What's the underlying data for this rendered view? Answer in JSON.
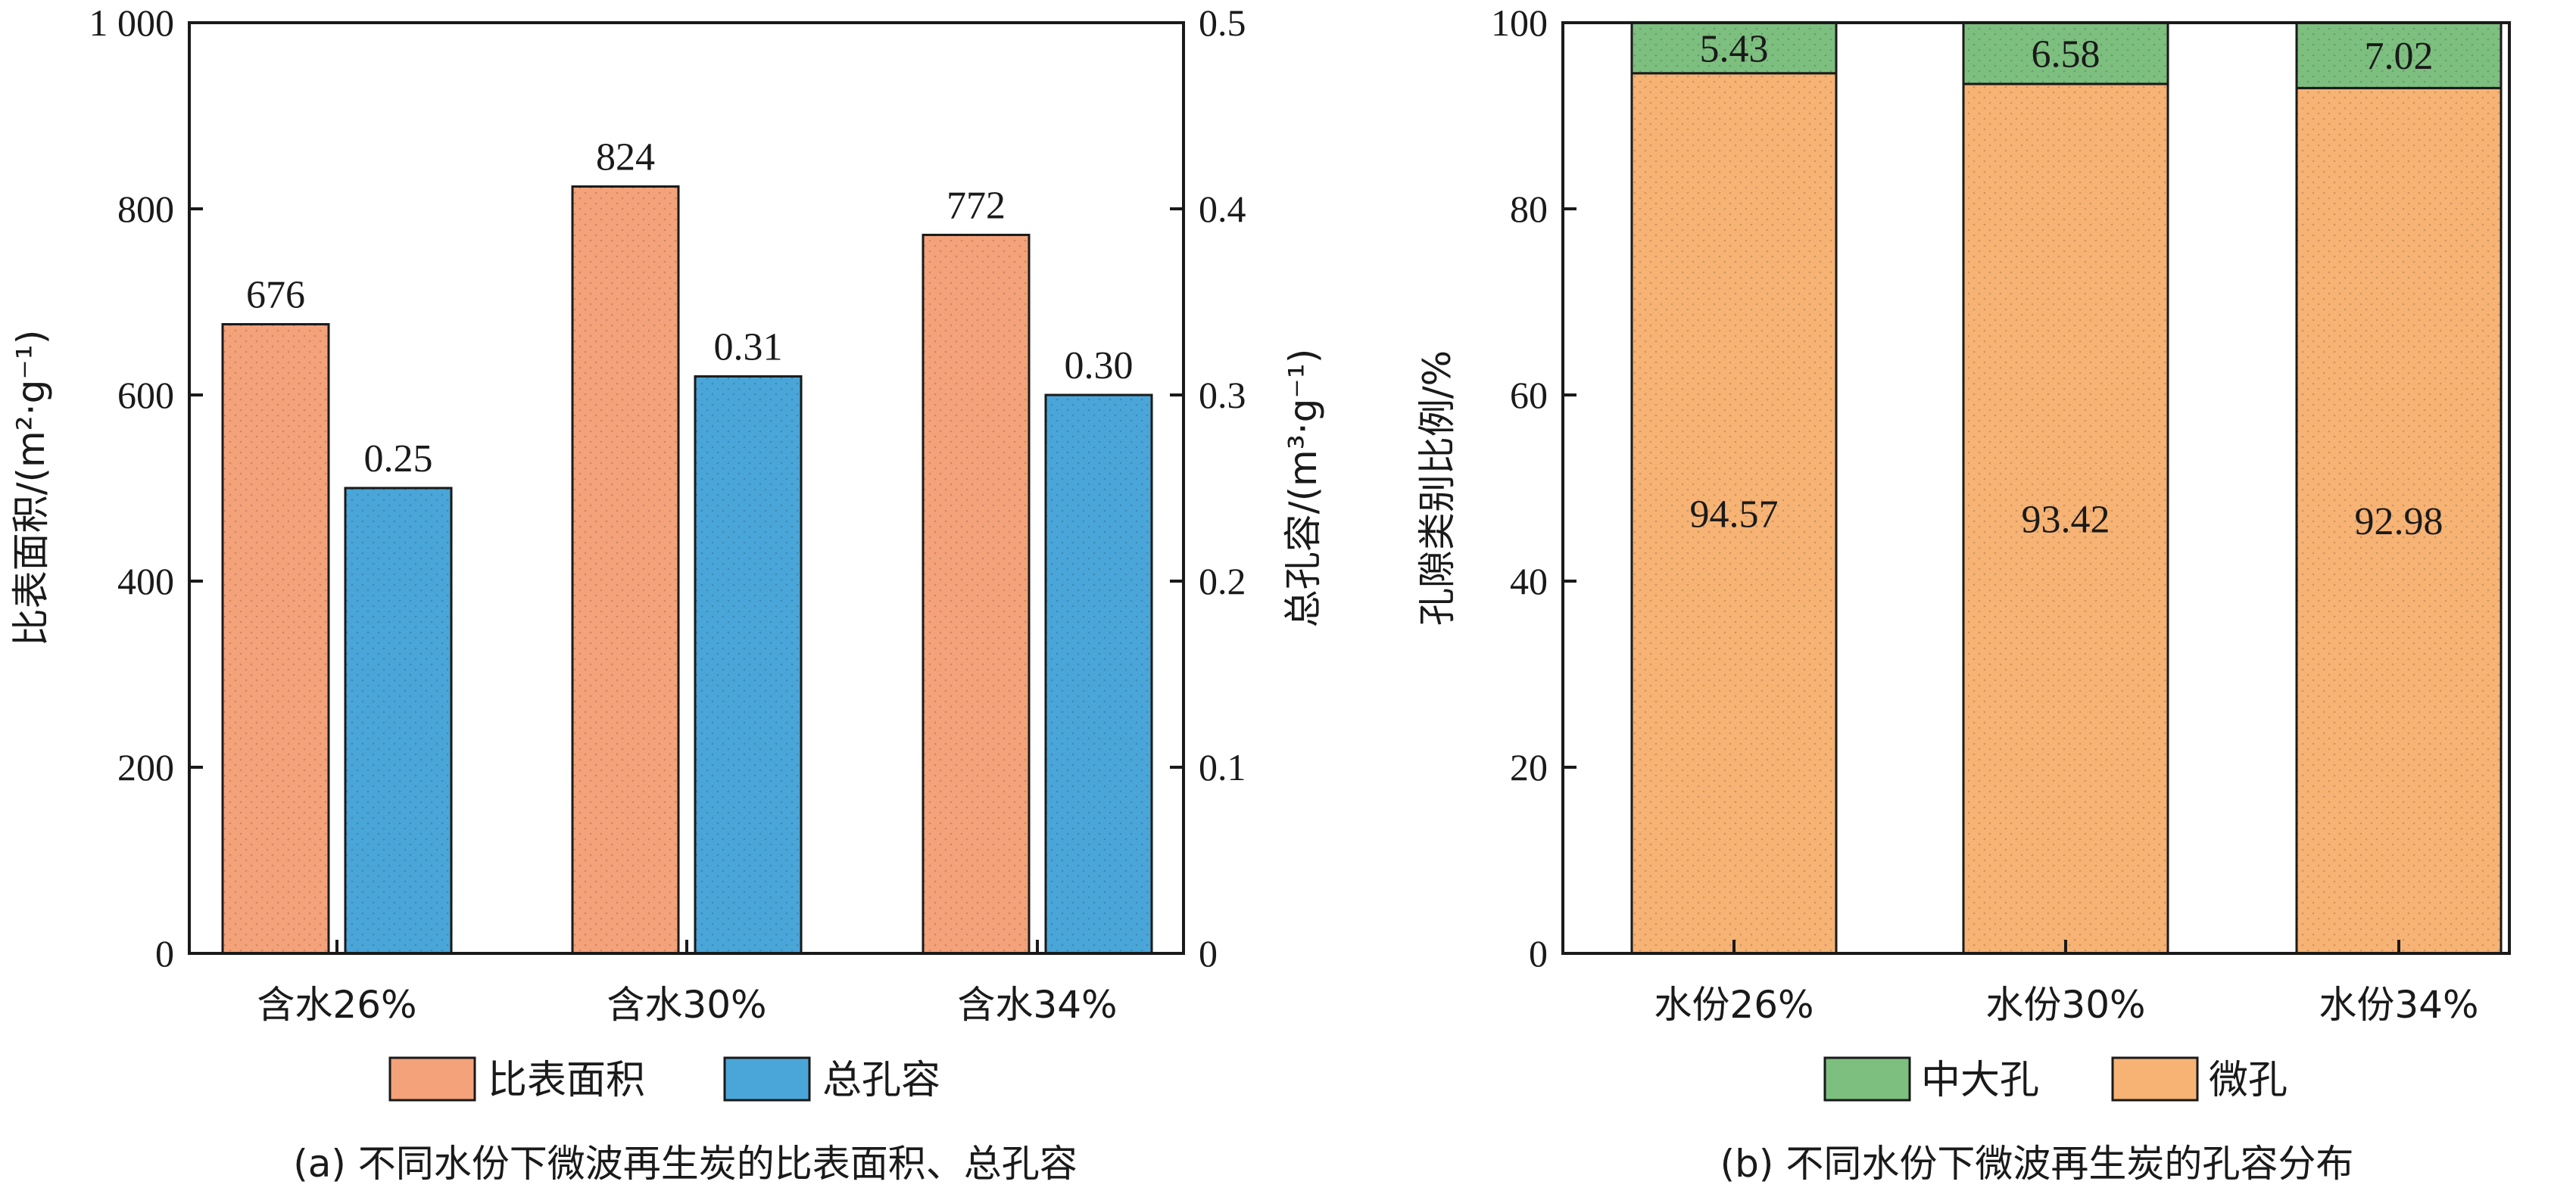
{
  "colors": {
    "surface": "#F4A27A",
    "volume": "#4AA6D8",
    "meso": "#7DBF7F",
    "micro": "#F6B374"
  },
  "chart_data": [
    {
      "type": "bar",
      "panel": "a",
      "caption": "(a) 不同水份下微波再生炭的比表面积、总孔容",
      "categories": [
        "含水26%",
        "含水30%",
        "含水34%"
      ],
      "ylabel": "比表面积/(m²·g⁻¹)",
      "ylabel_right": "总孔容/(m³·g⁻¹)",
      "ylim": [
        0,
        1000
      ],
      "ylim_right": [
        0,
        0.5
      ],
      "yticks": [
        0,
        200,
        400,
        600,
        800,
        1000
      ],
      "yticks_labels": [
        "0",
        "200",
        "400",
        "600",
        "800",
        "1 000"
      ],
      "yticks_right": [
        0,
        0.1,
        0.2,
        0.3,
        0.4,
        0.5
      ],
      "yticks_right_labels": [
        "0",
        "0.1",
        "0.2",
        "0.3",
        "0.4",
        "0.5"
      ],
      "series": [
        {
          "name": "比表面积",
          "axis": "left",
          "values": [
            676,
            824,
            772
          ],
          "labels": [
            "676",
            "824",
            "772"
          ]
        },
        {
          "name": "总孔容",
          "axis": "right",
          "values": [
            0.25,
            0.31,
            0.3
          ],
          "labels": [
            "0.25",
            "0.31",
            "0.30"
          ]
        }
      ],
      "legend": [
        "比表面积",
        "总孔容"
      ],
      "legend_position": "bottom"
    },
    {
      "type": "bar",
      "stacked": true,
      "panel": "b",
      "caption": "(b) 不同水份下微波再生炭的孔容分布",
      "categories": [
        "水份26%",
        "水份30%",
        "水份34%"
      ],
      "ylabel": "孔隙类别比例/%",
      "ylim": [
        0,
        100
      ],
      "yticks": [
        0,
        20,
        40,
        60,
        80,
        100
      ],
      "yticks_labels": [
        "0",
        "20",
        "40",
        "60",
        "80",
        "100"
      ],
      "series": [
        {
          "name": "微孔",
          "values": [
            94.57,
            93.42,
            92.98
          ],
          "labels": [
            "94.57",
            "93.42",
            "92.98"
          ]
        },
        {
          "name": "中大孔",
          "values": [
            5.43,
            6.58,
            7.02
          ],
          "labels": [
            "5.43",
            "6.58",
            "7.02"
          ]
        }
      ],
      "legend": [
        "中大孔",
        "微孔"
      ],
      "legend_position": "bottom"
    }
  ]
}
